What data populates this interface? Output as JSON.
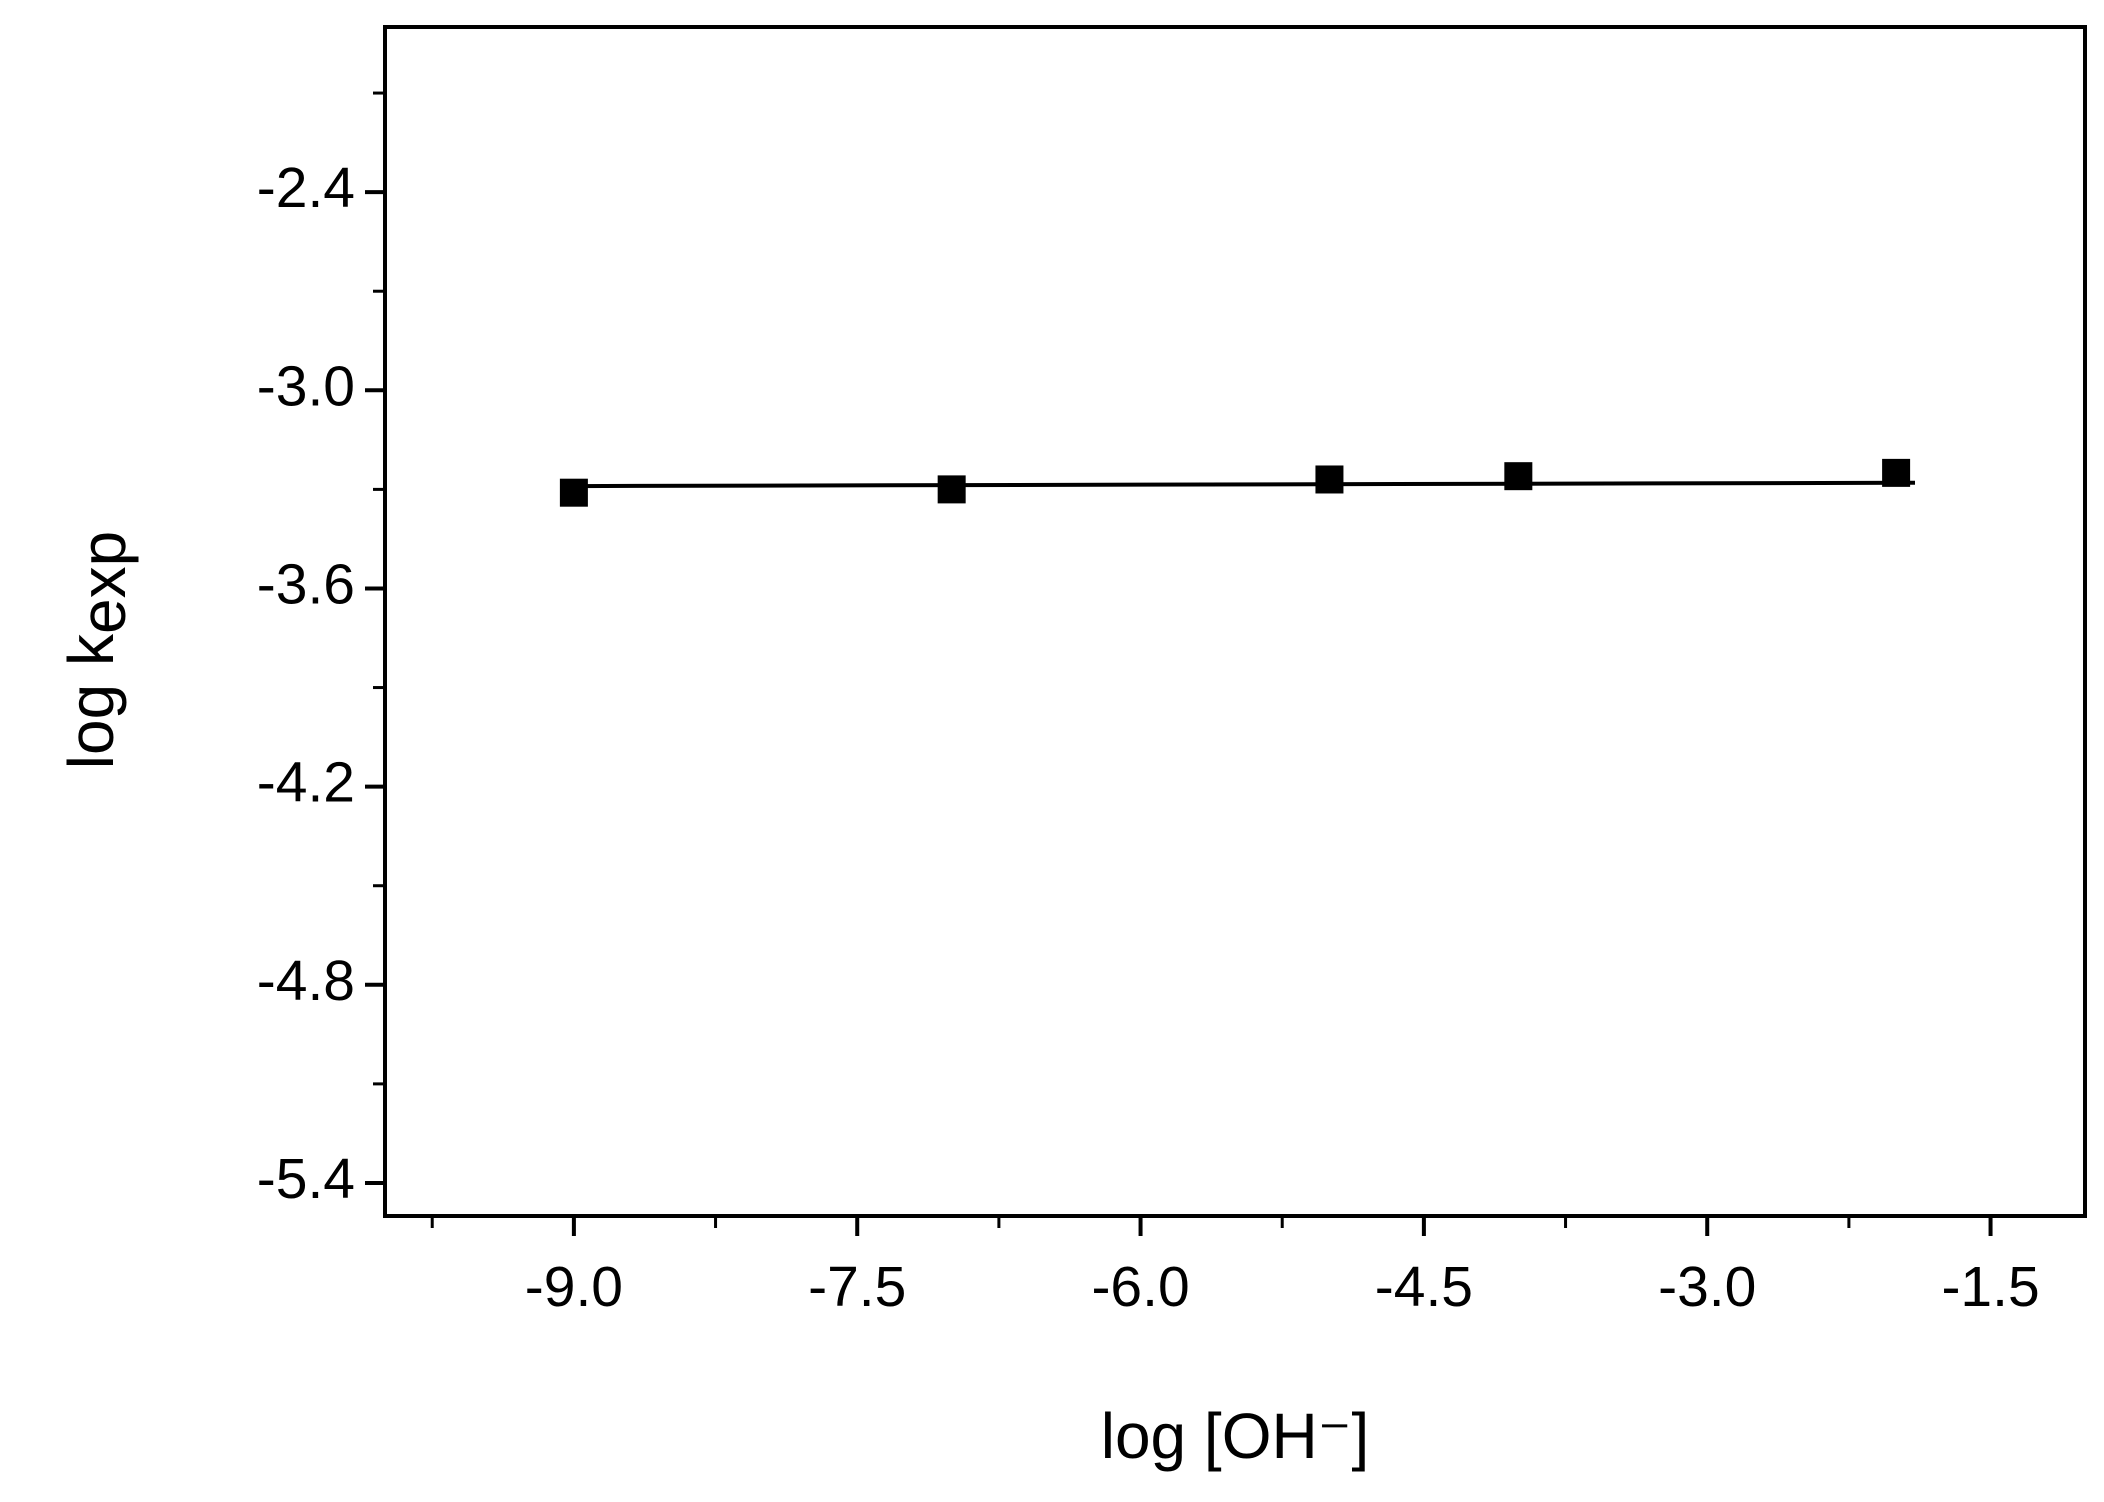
{
  "chart_data": {
    "type": "scatter",
    "xlabel": "log [OH⁻]",
    "ylabel": {
      "text": "log k",
      "sub": "exp"
    },
    "x": [
      -9.0,
      -7.0,
      -5.0,
      -4.0,
      -2.0
    ],
    "values": [
      -3.31,
      -3.3,
      -3.27,
      -3.26,
      -3.25
    ],
    "color": "#000000",
    "fit": {
      "x": [
        -9.0,
        -1.9
      ],
      "y": [
        -3.29,
        -3.28
      ]
    },
    "xlim": [
      -10,
      -1
    ],
    "ylim": [
      -5.5,
      -1.9
    ],
    "xticks": [
      {
        "value": -9,
        "label": "-9.0"
      },
      -7.5,
      {
        "value": -6,
        "label": "-6.0"
      },
      -4.5,
      {
        "value": -3,
        "label": "-3.0"
      },
      -1.5
    ],
    "yticks": [
      -2.4,
      {
        "value": -3,
        "label": "-3.0"
      },
      -3.6,
      -4.2,
      -4.8,
      -5.4
    ],
    "xminorticks": [
      -9.75,
      -8.25,
      -6.75,
      -5.25,
      -3.75,
      -2.25
    ],
    "yminorticks": [
      -2.1,
      -2.7,
      -3.3,
      -3.9,
      -4.5,
      -5.1
    ],
    "grid": false
  }
}
